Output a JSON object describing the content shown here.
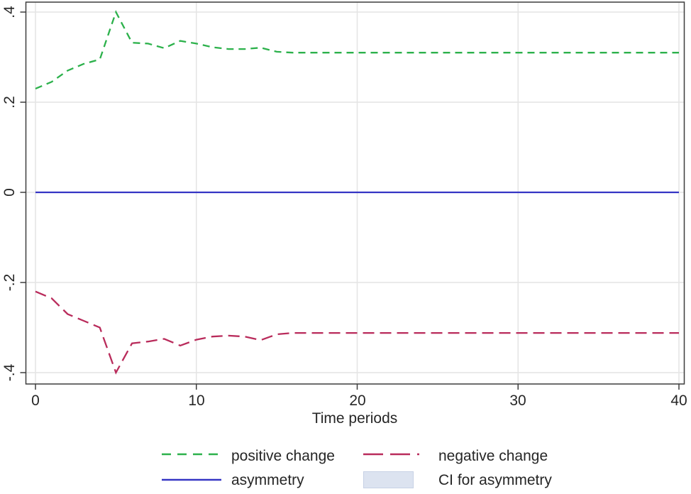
{
  "chart_data": {
    "type": "line",
    "title": "",
    "xlabel": "Time periods",
    "ylabel": "",
    "xlim": [
      0,
      40
    ],
    "ylim": [
      -0.4,
      0.4
    ],
    "grid": true,
    "legend_position": "bottom-center",
    "x_ticks": [
      0,
      10,
      20,
      30,
      40
    ],
    "x_tick_labels": [
      "0",
      "10",
      "20",
      "30",
      "40"
    ],
    "y_ticks": [
      0.4,
      0.2,
      0,
      -0.2,
      -0.4
    ],
    "y_tick_labels": [
      ".4",
      ".2",
      "0",
      "-.2",
      "-.4"
    ],
    "colors": {
      "positive_change": "#2cb14b",
      "negative_change": "#b92b5b",
      "asymmetry": "#3535c4",
      "ci_fill": "#dce3f0",
      "grid": "#e4e4e4",
      "frame": "#3d3d3d",
      "text": "#262626"
    },
    "x": [
      0,
      1,
      2,
      3,
      4,
      5,
      6,
      7,
      8,
      9,
      10,
      11,
      12,
      13,
      14,
      15,
      16,
      17,
      18,
      19,
      20,
      21,
      22,
      23,
      24,
      25,
      26,
      27,
      28,
      29,
      30,
      31,
      32,
      33,
      34,
      35,
      36,
      37,
      38,
      39,
      40
    ],
    "series": [
      {
        "name": "positive change",
        "color": "#2cb14b",
        "line_style": "dashed",
        "values": [
          0.23,
          0.245,
          0.27,
          0.285,
          0.295,
          0.4,
          0.332,
          0.33,
          0.32,
          0.336,
          0.33,
          0.322,
          0.318,
          0.318,
          0.321,
          0.312,
          0.31,
          0.31,
          0.31,
          0.31,
          0.31,
          0.31,
          0.31,
          0.31,
          0.31,
          0.31,
          0.31,
          0.31,
          0.31,
          0.31,
          0.31,
          0.31,
          0.31,
          0.31,
          0.31,
          0.31,
          0.31,
          0.31,
          0.31,
          0.31,
          0.31
        ]
      },
      {
        "name": "negative change",
        "color": "#b92b5b",
        "line_style": "long-dash-dot",
        "values": [
          -0.22,
          -0.235,
          -0.27,
          -0.285,
          -0.3,
          -0.4,
          -0.335,
          -0.331,
          -0.325,
          -0.34,
          -0.327,
          -0.32,
          -0.318,
          -0.32,
          -0.328,
          -0.315,
          -0.312,
          -0.312,
          -0.312,
          -0.312,
          -0.312,
          -0.312,
          -0.312,
          -0.312,
          -0.312,
          -0.312,
          -0.312,
          -0.312,
          -0.312,
          -0.312,
          -0.312,
          -0.312,
          -0.312,
          -0.312,
          -0.312,
          -0.312,
          -0.312,
          -0.312,
          -0.312,
          -0.312,
          -0.312
        ]
      },
      {
        "name": "asymmetry",
        "color": "#3535c4",
        "line_style": "solid",
        "values": [
          0,
          0,
          0,
          0,
          0,
          0,
          0,
          0,
          0,
          0,
          0,
          0,
          0,
          0,
          0,
          0,
          0,
          0,
          0,
          0,
          0,
          0,
          0,
          0,
          0,
          0,
          0,
          0,
          0,
          0,
          0,
          0,
          0,
          0,
          0,
          0,
          0,
          0,
          0,
          0,
          0
        ]
      },
      {
        "name": "CI for asymmetry",
        "color": "#dce3f0",
        "line_style": "filled-band",
        "values": null
      }
    ]
  }
}
